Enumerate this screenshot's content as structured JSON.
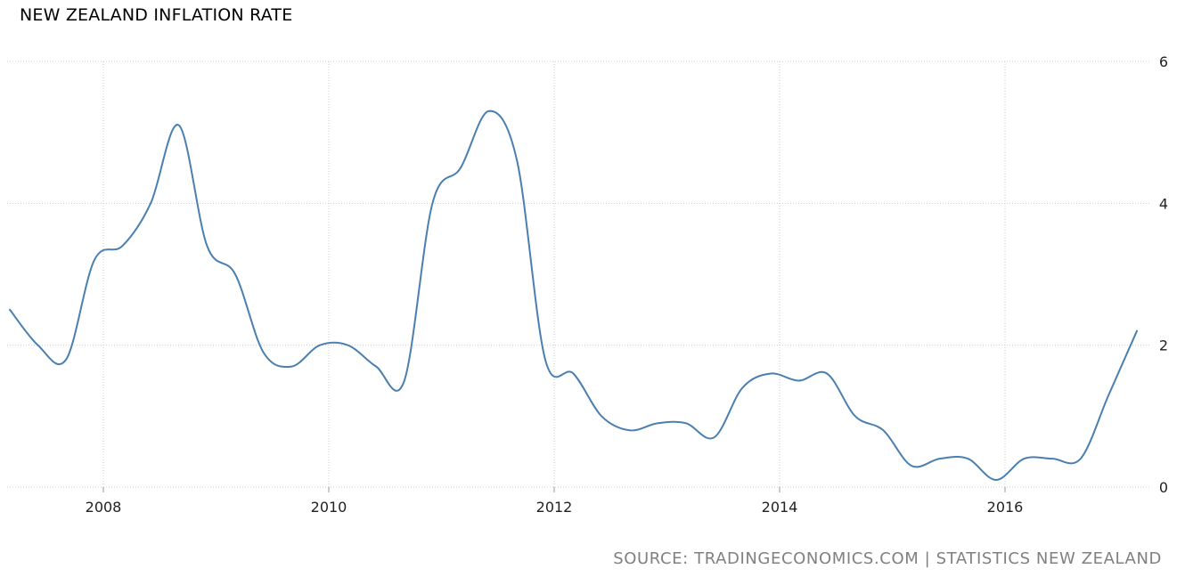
{
  "title": "NEW ZEALAND INFLATION RATE",
  "source": "SOURCE: TRADINGECONOMICS.COM | STATISTICS NEW ZEALAND",
  "colors": {
    "line": "#4a7fb0",
    "grid": "#cccccc",
    "axis_text": "#222222",
    "source_text": "#808080"
  },
  "chart_data": {
    "type": "line",
    "title": "NEW ZEALAND INFLATION RATE",
    "xlabel": "",
    "ylabel": "",
    "ylim": [
      0,
      6
    ],
    "yticks": [
      0,
      2,
      4,
      6
    ],
    "xticks": [
      2008,
      2010,
      2012,
      2014,
      2016
    ],
    "y_axis_side": "right",
    "grid": "dotted",
    "series": [
      {
        "x": [
          2007.17,
          2007.42,
          2007.67,
          2007.92,
          2008.17,
          2008.42,
          2008.67,
          2008.92,
          2009.17,
          2009.42,
          2009.67,
          2009.92,
          2010.17,
          2010.42,
          2010.67,
          2010.92,
          2011.17,
          2011.42,
          2011.67,
          2011.92,
          2012.17,
          2012.42,
          2012.67,
          2012.92,
          2013.17,
          2013.42,
          2013.67,
          2013.92,
          2014.17,
          2014.42,
          2014.67,
          2014.92,
          2015.17,
          2015.42,
          2015.67,
          2015.92,
          2016.17,
          2016.42,
          2016.67,
          2016.92,
          2017.17
        ],
        "y": [
          2.5,
          2.0,
          1.8,
          3.2,
          3.4,
          4.0,
          5.1,
          3.4,
          3.0,
          1.9,
          1.7,
          2.0,
          2.0,
          1.7,
          1.5,
          4.0,
          4.5,
          5.3,
          4.6,
          1.8,
          1.6,
          1.0,
          0.8,
          0.9,
          0.9,
          0.7,
          1.4,
          1.6,
          1.5,
          1.6,
          1.0,
          0.8,
          0.3,
          0.4,
          0.4,
          0.1,
          0.4,
          0.4,
          0.4,
          1.3,
          2.2
        ]
      }
    ]
  }
}
